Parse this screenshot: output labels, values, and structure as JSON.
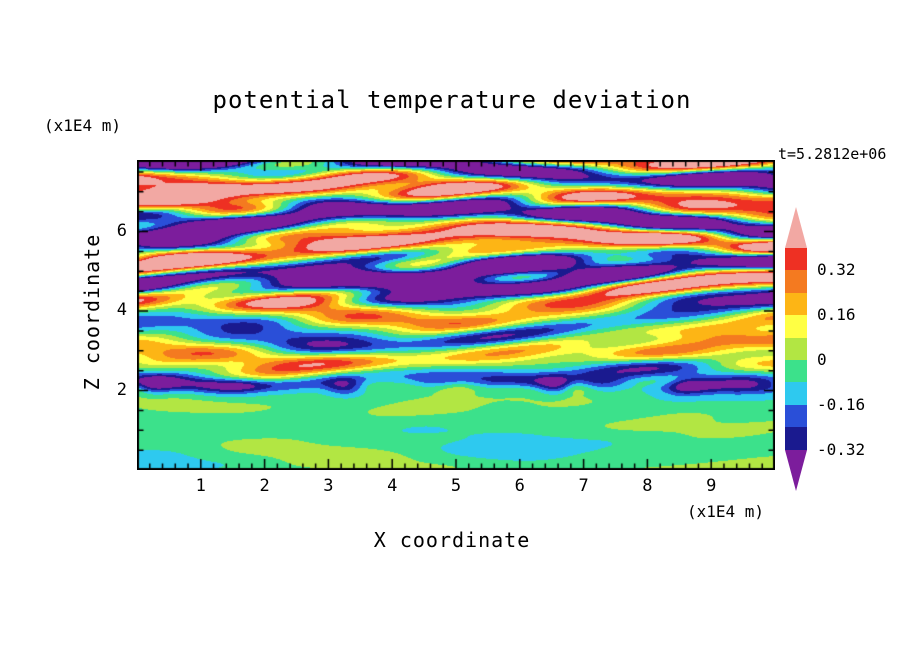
{
  "title": "potential temperature deviation",
  "time_label": "t=5.2812e+06",
  "axes": {
    "x_label": "X coordinate",
    "x_unit": "(x1E4 m)",
    "y_label": "Z coordinate",
    "y_unit": "(x1E4 m)"
  },
  "chart_data": {
    "type": "heatmap",
    "title": "potential temperature deviation",
    "xlabel": "X coordinate (x1E4 m)",
    "ylabel": "Z coordinate (x1E4 m)",
    "time_annotation": "t=5.2812e+06",
    "x_range": [
      0,
      10
    ],
    "z_range": [
      0,
      7.8
    ],
    "x_ticks": [
      1,
      2,
      3,
      4,
      5,
      6,
      7,
      8,
      9
    ],
    "y_ticks": [
      2,
      4,
      6
    ],
    "x_minor_interval": 0.2,
    "z_minor_interval": 0.5,
    "contour_interval": 0.08,
    "labeled_levels": [
      0.32,
      0.16,
      0,
      -0.16,
      -0.32
    ],
    "colorbar": {
      "above_color": "#f2a8a3",
      "below_color": "#7c1d9c",
      "bands": [
        {
          "max": 0.4,
          "min": 0.32,
          "color": "#ee3023",
          "label": "0.32"
        },
        {
          "max": 0.32,
          "min": 0.24,
          "color": "#f47a20",
          "label": ""
        },
        {
          "max": 0.24,
          "min": 0.16,
          "color": "#fdb515",
          "label": "0.16"
        },
        {
          "max": 0.16,
          "min": 0.08,
          "color": "#ffff44",
          "label": ""
        },
        {
          "max": 0.08,
          "min": 0,
          "color": "#b2e643",
          "label": "0"
        },
        {
          "max": 0,
          "min": -0.08,
          "color": "#3ce18b",
          "label": ""
        },
        {
          "max": -0.08,
          "min": -0.16,
          "color": "#2ec9ef",
          "label": "-0.16"
        },
        {
          "max": -0.16,
          "min": -0.24,
          "color": "#2a4fd8",
          "label": ""
        },
        {
          "max": -0.24,
          "min": -0.32,
          "color": "#1a1a8f",
          "label": "-0.32"
        }
      ]
    },
    "structure_notes": "Strongly stratified wave layers aloft (z>4.3, deviations beyond +/-0.32: pink/purple bands); turbulent filamented mixed layers for 2<z<4.3 (full color range streaks); near-zero slightly negative deviation (green) below z=2 with thin intense layers at the z~2 interface."
  }
}
